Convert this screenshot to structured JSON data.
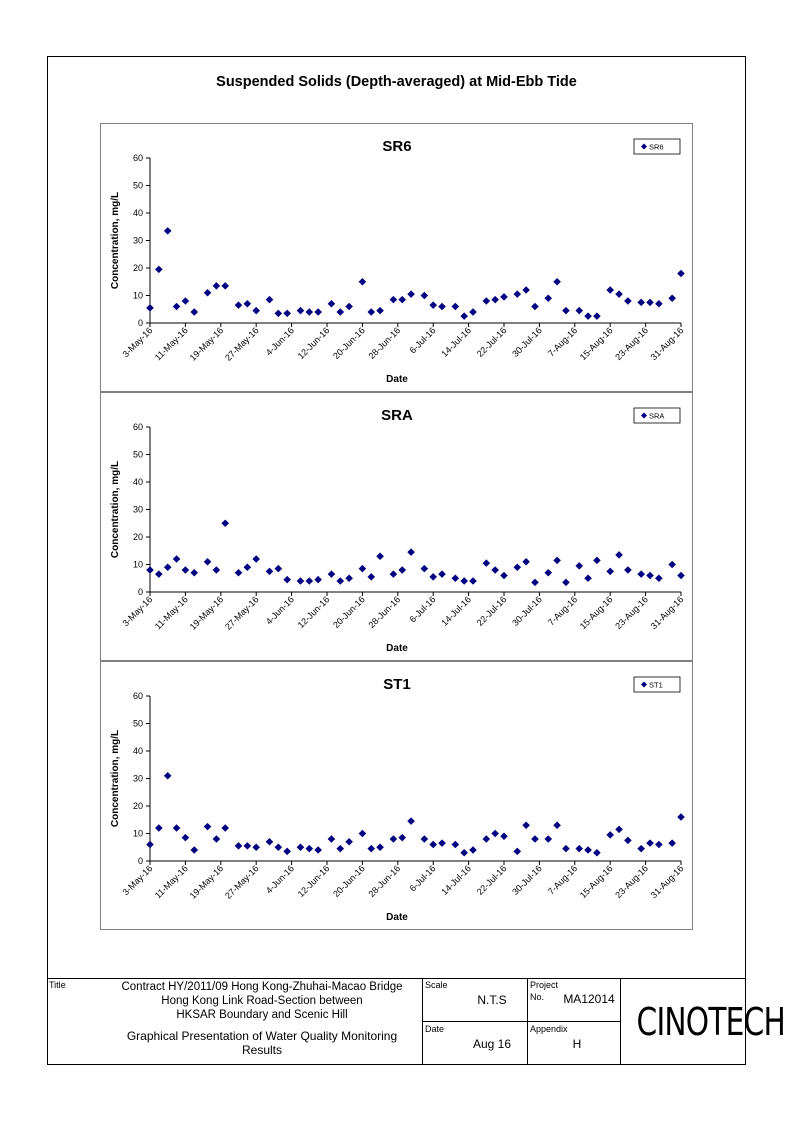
{
  "page": {
    "title": "Suspended Solids (Depth-averaged) at Mid-Ebb Tide"
  },
  "colors": {
    "marker": "#000080",
    "axis": "#000000",
    "panel_border": "#808080"
  },
  "chart_data": [
    {
      "type": "scatter",
      "title": "SR6",
      "xlabel": "Date",
      "ylabel": "Concentration, mg/L",
      "ylim": [
        0,
        60
      ],
      "yticks": [
        0,
        10,
        20,
        30,
        40,
        50,
        60
      ],
      "xlim": [
        "2016-05-03",
        "2016-08-31"
      ],
      "xtick_labels": [
        "3-May-16",
        "11-May-16",
        "19-May-16",
        "27-May-16",
        "4-Jun-16",
        "12-Jun-16",
        "20-Jun-16",
        "28-Jun-16",
        "6-Jul-16",
        "14-Jul-16",
        "22-Jul-16",
        "30-Jul-16",
        "7-Aug-16",
        "15-Aug-16",
        "23-Aug-16",
        "31-Aug-16"
      ],
      "legend": "top-right",
      "grid": false,
      "series": [
        {
          "name": "SR6",
          "x": [
            "2016-05-03",
            "2016-05-05",
            "2016-05-07",
            "2016-05-09",
            "2016-05-11",
            "2016-05-13",
            "2016-05-16",
            "2016-05-18",
            "2016-05-20",
            "2016-05-23",
            "2016-05-25",
            "2016-05-27",
            "2016-05-30",
            "2016-06-01",
            "2016-06-03",
            "2016-06-06",
            "2016-06-08",
            "2016-06-10",
            "2016-06-13",
            "2016-06-15",
            "2016-06-17",
            "2016-06-20",
            "2016-06-22",
            "2016-06-24",
            "2016-06-27",
            "2016-06-29",
            "2016-07-01",
            "2016-07-04",
            "2016-07-06",
            "2016-07-08",
            "2016-07-11",
            "2016-07-13",
            "2016-07-15",
            "2016-07-18",
            "2016-07-20",
            "2016-07-22",
            "2016-07-25",
            "2016-07-27",
            "2016-07-29",
            "2016-08-01",
            "2016-08-03",
            "2016-08-05",
            "2016-08-08",
            "2016-08-10",
            "2016-08-12",
            "2016-08-15",
            "2016-08-17",
            "2016-08-19",
            "2016-08-22",
            "2016-08-24",
            "2016-08-26",
            "2016-08-29",
            "2016-08-31"
          ],
          "values": [
            5.5,
            19.5,
            33.5,
            6,
            8,
            4,
            11,
            13.5,
            13.5,
            6.5,
            7,
            4.5,
            8.5,
            3.5,
            3.5,
            4.5,
            4,
            4,
            7,
            4,
            6,
            15,
            4,
            4.5,
            8.5,
            8.5,
            10.5,
            10,
            6.5,
            6,
            6,
            2.5,
            4,
            8,
            8.5,
            9.5,
            10.5,
            12,
            6,
            9,
            15,
            4.5,
            4.5,
            2.5,
            2.5,
            12,
            10.5,
            8,
            7.5,
            7.5,
            7,
            9,
            18
          ]
        }
      ]
    },
    {
      "type": "scatter",
      "title": "SRA",
      "xlabel": "Date",
      "ylabel": "Concentration, mg/L",
      "ylim": [
        0,
        60
      ],
      "yticks": [
        0,
        10,
        20,
        30,
        40,
        50,
        60
      ],
      "xlim": [
        "2016-05-03",
        "2016-08-31"
      ],
      "xtick_labels": [
        "3-May-16",
        "11-May-16",
        "19-May-16",
        "27-May-16",
        "4-Jun-16",
        "12-Jun-16",
        "20-Jun-16",
        "28-Jun-16",
        "6-Jul-16",
        "14-Jul-16",
        "22-Jul-16",
        "30-Jul-16",
        "7-Aug-16",
        "15-Aug-16",
        "23-Aug-16",
        "31-Aug-16"
      ],
      "legend": "top-right",
      "grid": false,
      "series": [
        {
          "name": "SRA",
          "x": [
            "2016-05-03",
            "2016-05-05",
            "2016-05-07",
            "2016-05-09",
            "2016-05-11",
            "2016-05-13",
            "2016-05-16",
            "2016-05-18",
            "2016-05-20",
            "2016-05-23",
            "2016-05-25",
            "2016-05-27",
            "2016-05-30",
            "2016-06-01",
            "2016-06-03",
            "2016-06-06",
            "2016-06-08",
            "2016-06-10",
            "2016-06-13",
            "2016-06-15",
            "2016-06-17",
            "2016-06-20",
            "2016-06-22",
            "2016-06-24",
            "2016-06-27",
            "2016-06-29",
            "2016-07-01",
            "2016-07-04",
            "2016-07-06",
            "2016-07-08",
            "2016-07-11",
            "2016-07-13",
            "2016-07-15",
            "2016-07-18",
            "2016-07-20",
            "2016-07-22",
            "2016-07-25",
            "2016-07-27",
            "2016-07-29",
            "2016-08-01",
            "2016-08-03",
            "2016-08-05",
            "2016-08-08",
            "2016-08-10",
            "2016-08-12",
            "2016-08-15",
            "2016-08-17",
            "2016-08-19",
            "2016-08-22",
            "2016-08-24",
            "2016-08-26",
            "2016-08-29",
            "2016-08-31"
          ],
          "values": [
            8,
            6.5,
            9,
            12,
            8,
            7,
            11,
            8,
            25,
            7,
            9,
            12,
            7.5,
            8.5,
            4.5,
            4,
            4,
            4.5,
            6.5,
            4,
            5,
            8.5,
            5.5,
            13,
            6.5,
            8,
            14.5,
            8.5,
            5.5,
            6.5,
            5,
            4,
            4,
            10.5,
            8,
            6,
            9,
            11,
            3.5,
            7,
            11.5,
            3.5,
            9.5,
            5,
            11.5,
            7.5,
            13.5,
            8,
            6.5,
            6,
            5,
            10,
            6
          ]
        }
      ]
    },
    {
      "type": "scatter",
      "title": "ST1",
      "xlabel": "Date",
      "ylabel": "Concentration, mg/L",
      "ylim": [
        0,
        60
      ],
      "yticks": [
        0,
        10,
        20,
        30,
        40,
        50,
        60
      ],
      "xlim": [
        "2016-05-03",
        "2016-08-31"
      ],
      "xtick_labels": [
        "3-May-16",
        "11-May-16",
        "19-May-16",
        "27-May-16",
        "4-Jun-16",
        "12-Jun-16",
        "20-Jun-16",
        "28-Jun-16",
        "6-Jul-16",
        "14-Jul-16",
        "22-Jul-16",
        "30-Jul-16",
        "7-Aug-16",
        "15-Aug-16",
        "23-Aug-16",
        "31-Aug-16"
      ],
      "legend": "top-right",
      "grid": false,
      "series": [
        {
          "name": "ST1",
          "x": [
            "2016-05-03",
            "2016-05-05",
            "2016-05-07",
            "2016-05-09",
            "2016-05-11",
            "2016-05-13",
            "2016-05-16",
            "2016-05-18",
            "2016-05-20",
            "2016-05-23",
            "2016-05-25",
            "2016-05-27",
            "2016-05-30",
            "2016-06-01",
            "2016-06-03",
            "2016-06-06",
            "2016-06-08",
            "2016-06-10",
            "2016-06-13",
            "2016-06-15",
            "2016-06-17",
            "2016-06-20",
            "2016-06-22",
            "2016-06-24",
            "2016-06-27",
            "2016-06-29",
            "2016-07-01",
            "2016-07-04",
            "2016-07-06",
            "2016-07-08",
            "2016-07-11",
            "2016-07-13",
            "2016-07-15",
            "2016-07-18",
            "2016-07-20",
            "2016-07-22",
            "2016-07-25",
            "2016-07-27",
            "2016-07-29",
            "2016-08-01",
            "2016-08-03",
            "2016-08-05",
            "2016-08-08",
            "2016-08-10",
            "2016-08-12",
            "2016-08-15",
            "2016-08-17",
            "2016-08-19",
            "2016-08-22",
            "2016-08-24",
            "2016-08-26",
            "2016-08-29",
            "2016-08-31"
          ],
          "values": [
            6,
            12,
            31,
            12,
            8.5,
            4,
            12.5,
            8,
            12,
            5.5,
            5.5,
            5,
            7,
            5,
            3.5,
            5,
            4.5,
            4,
            8,
            4.5,
            7,
            10,
            4.5,
            5,
            8,
            8.5,
            14.5,
            8,
            6,
            6.5,
            6,
            3,
            4,
            8,
            10,
            9,
            3.5,
            13,
            8,
            8,
            13,
            4.5,
            4.5,
            4,
            3,
            9.5,
            11.5,
            7.5,
            4.5,
            6.5,
            6,
            6.5,
            16
          ]
        }
      ]
    }
  ],
  "titleblock": {
    "title_label": "Title",
    "title_line1": "Contract HY/2011/09 Hong Kong-Zhuhai-Macao Bridge",
    "title_line2": "Hong Kong Link Road-Section between",
    "title_line3": "HKSAR Boundary and Scenic Hill",
    "subtitle_line1": "Graphical Presentation of Water Quality Monitoring",
    "subtitle_line2": "Results",
    "scale_label": "Scale",
    "scale_value": "N.T.S",
    "project_label": "Project",
    "no_label": "No.",
    "project_value": "MA12014",
    "date_label": "Date",
    "date_value": "Aug 16",
    "appendix_label": "Appendix",
    "appendix_value": "H",
    "logo": "CINOTECH"
  }
}
